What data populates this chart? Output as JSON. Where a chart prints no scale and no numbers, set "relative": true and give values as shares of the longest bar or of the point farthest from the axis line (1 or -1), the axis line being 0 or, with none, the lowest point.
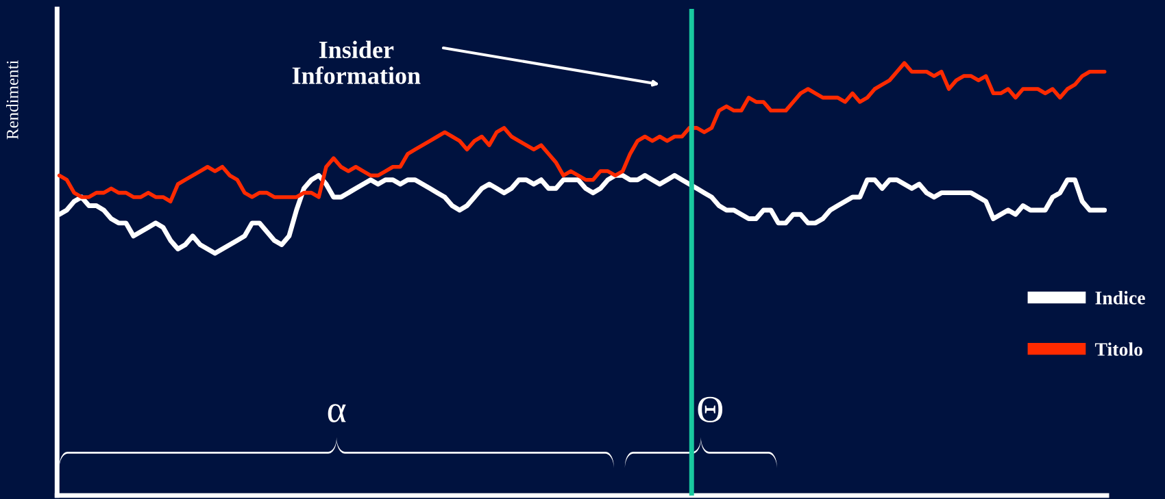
{
  "chart_data": {
    "type": "line",
    "relative": true,
    "ylabel": "Rendimenti",
    "categories": [
      null,
      null,
      null,
      null,
      null,
      null,
      null,
      null,
      null,
      null,
      null,
      null,
      null,
      null,
      null,
      null,
      null,
      null,
      null,
      null,
      null,
      null,
      null,
      null,
      null,
      null,
      null,
      null,
      null,
      null,
      null,
      null,
      null,
      null,
      null,
      null,
      null,
      null,
      null,
      null,
      null,
      null,
      null,
      null,
      null,
      null,
      null,
      null,
      null,
      null,
      null,
      null,
      null,
      null,
      null,
      null,
      null,
      null,
      null,
      null,
      null,
      null,
      null,
      null,
      null,
      null,
      null,
      null,
      null,
      null,
      null,
      null,
      null,
      null,
      null,
      null,
      null,
      null,
      null,
      null,
      null,
      null,
      null,
      null,
      null,
      null,
      null,
      null,
      null,
      null,
      null,
      null,
      null,
      null,
      null,
      null,
      null,
      null,
      null,
      null,
      null,
      null,
      null,
      null,
      null,
      null,
      null,
      null,
      null,
      null,
      null,
      null,
      null,
      null,
      null,
      null,
      null,
      null,
      null,
      null,
      null,
      null,
      null,
      null,
      null,
      null,
      null,
      null,
      null,
      null,
      null,
      null,
      null,
      null,
      null,
      null,
      null,
      null,
      null,
      null,
      null,
      null
    ],
    "series": [
      {
        "name": "Indice",
        "color": "#ffffff",
        "values": [
          0.65,
          0.66,
          0.68,
          0.69,
          0.67,
          0.67,
          0.66,
          0.64,
          0.63,
          0.63,
          0.6,
          0.61,
          0.62,
          0.63,
          0.62,
          0.59,
          0.57,
          0.58,
          0.6,
          0.58,
          0.57,
          0.56,
          0.57,
          0.58,
          0.59,
          0.6,
          0.63,
          0.63,
          0.61,
          0.59,
          0.58,
          0.6,
          0.66,
          0.71,
          0.73,
          0.74,
          0.72,
          0.69,
          0.69,
          0.7,
          0.71,
          0.72,
          0.73,
          0.72,
          0.73,
          0.73,
          0.72,
          0.73,
          0.73,
          0.72,
          0.71,
          0.7,
          0.69,
          0.67,
          0.66,
          0.67,
          0.69,
          0.71,
          0.72,
          0.71,
          0.7,
          0.71,
          0.73,
          0.73,
          0.72,
          0.73,
          0.71,
          0.71,
          0.73,
          0.73,
          0.73,
          0.71,
          0.7,
          0.71,
          0.73,
          0.74,
          0.74,
          0.73,
          0.73,
          0.74,
          0.73,
          0.72,
          0.73,
          0.74,
          0.73,
          0.72,
          0.71,
          0.7,
          0.69,
          0.67,
          0.66,
          0.66,
          0.65,
          0.64,
          0.64,
          0.66,
          0.66,
          0.63,
          0.63,
          0.65,
          0.65,
          0.63,
          0.63,
          0.64,
          0.66,
          0.67,
          0.68,
          0.69,
          0.69,
          0.73,
          0.73,
          0.71,
          0.73,
          0.73,
          0.72,
          0.71,
          0.72,
          0.7,
          0.69,
          0.7,
          0.7,
          0.7,
          0.7,
          0.7,
          0.69,
          0.68,
          0.64,
          0.65,
          0.66,
          0.65,
          0.67,
          0.66,
          0.66,
          0.66,
          0.69,
          0.7,
          0.73,
          0.73,
          0.68,
          0.66,
          0.66,
          0.66
        ]
      },
      {
        "name": "Titolo",
        "color": "#ff2a00",
        "values": [
          0.74,
          0.73,
          0.7,
          0.69,
          0.69,
          0.7,
          0.7,
          0.71,
          0.7,
          0.7,
          0.69,
          0.69,
          0.7,
          0.69,
          0.69,
          0.68,
          0.72,
          0.73,
          0.74,
          0.75,
          0.76,
          0.75,
          0.76,
          0.74,
          0.73,
          0.7,
          0.69,
          0.7,
          0.7,
          0.69,
          0.69,
          0.69,
          0.69,
          0.7,
          0.7,
          0.69,
          0.76,
          0.78,
          0.76,
          0.75,
          0.76,
          0.75,
          0.74,
          0.74,
          0.75,
          0.76,
          0.76,
          0.79,
          0.8,
          0.81,
          0.82,
          0.83,
          0.84,
          0.83,
          0.82,
          0.8,
          0.82,
          0.83,
          0.81,
          0.84,
          0.85,
          0.83,
          0.82,
          0.81,
          0.8,
          0.81,
          0.79,
          0.77,
          0.74,
          0.75,
          0.74,
          0.73,
          0.73,
          0.75,
          0.75,
          0.74,
          0.75,
          0.79,
          0.82,
          0.83,
          0.82,
          0.83,
          0.82,
          0.83,
          0.83,
          0.85,
          0.85,
          0.84,
          0.85,
          0.89,
          0.9,
          0.89,
          0.89,
          0.92,
          0.91,
          0.91,
          0.89,
          0.89,
          0.89,
          0.91,
          0.93,
          0.94,
          0.93,
          0.92,
          0.92,
          0.92,
          0.91,
          0.93,
          0.91,
          0.92,
          0.94,
          0.95,
          0.96,
          0.98,
          1.0,
          0.98,
          0.98,
          0.98,
          0.97,
          0.98,
          0.94,
          0.96,
          0.97,
          0.97,
          0.96,
          0.97,
          0.93,
          0.93,
          0.94,
          0.92,
          0.94,
          0.94,
          0.94,
          0.93,
          0.94,
          0.92,
          0.94,
          0.95,
          0.97,
          0.98,
          0.98,
          0.98
        ]
      }
    ],
    "annotations": [
      "Insider Information",
      "α",
      "Θ"
    ],
    "legend": "right"
  }
}
